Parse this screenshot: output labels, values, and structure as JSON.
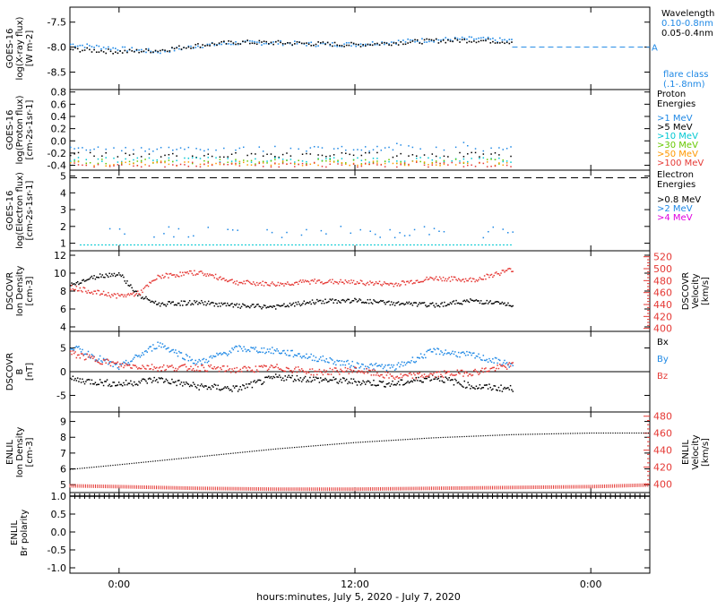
{
  "colors": {
    "black": "#000000",
    "blue": "#1e88e5",
    "red": "#e53935",
    "cyan": "#00c8d2",
    "green": "#66c800",
    "orange": "#ff9800",
    "magenta": "#e000e0"
  },
  "xaxis": {
    "ticks": [
      "0:00",
      "12:00",
      "0:00"
    ],
    "tick_hours": [
      0,
      12,
      24
    ],
    "range_hours": [
      -2.5,
      27
    ],
    "label": "hours:minutes, July  5, 2020 - July  7, 2020"
  },
  "chart_data": [
    {
      "type": "scatter",
      "id": "goes-xray",
      "ylabel_lines": [
        "GOES-16",
        "log(X-ray flux)",
        "[W m-2]"
      ],
      "yticks": [
        "-7.5",
        "-8.0",
        "-8.5"
      ],
      "ytick_values": [
        -7.5,
        -8.0,
        -8.5
      ],
      "ylim": [
        -8.85,
        -7.2
      ],
      "legend_title": "Wavelength",
      "legend": [
        {
          "label": "0.10-0.8nm",
          "color": "#1e88e5"
        },
        {
          "label": "0.05-0.4nm",
          "color": "#000000"
        }
      ],
      "flare_marker": "A",
      "flare_level": -8.0,
      "flare_class_label": [
        "flare class",
        "(.1-.8nm)"
      ],
      "series": [
        {
          "name": "0.10-0.8nm",
          "x": [
            -2.5,
            0,
            2,
            4,
            6,
            8,
            10,
            12,
            14,
            16,
            18,
            20
          ],
          "y": [
            -7.93,
            -8.02,
            -8.08,
            -7.96,
            -7.9,
            -7.9,
            -7.93,
            -7.93,
            -7.88,
            -7.84,
            -7.82,
            -7.86
          ]
        },
        {
          "name": "0.05-0.4nm",
          "x": [
            -2.5,
            0,
            2,
            4,
            6,
            8,
            10,
            12,
            14,
            16,
            18,
            20
          ],
          "y": [
            -8.03,
            -8.08,
            -8.05,
            -7.95,
            -7.89,
            -7.9,
            -7.92,
            -7.94,
            -7.9,
            -7.86,
            -7.85,
            -7.88
          ]
        }
      ]
    },
    {
      "type": "scatter",
      "id": "goes-proton",
      "ylabel_lines": [
        "GOES-16",
        "log(Proton flux)",
        "[cm-2s-1sr-1]"
      ],
      "yticks": [
        "0.8",
        "0.6",
        "0.4",
        "0.2",
        "0.0",
        "-0.2",
        "-0.4"
      ],
      "ytick_values": [
        0.8,
        0.6,
        0.4,
        0.2,
        0.0,
        -0.2,
        -0.4
      ],
      "ylim": [
        -0.48,
        0.84
      ],
      "legend_title": "Proton Energies",
      "legend": [
        {
          "label": ">1 MeV",
          "color": "#1e88e5"
        },
        {
          "label": ">5 MeV",
          "color": "#000000"
        },
        {
          "label": ">10 MeV",
          "color": "#00c8d2"
        },
        {
          "label": ">30 MeV",
          "color": "#66c800"
        },
        {
          "label": ">50 MeV",
          "color": "#ff9800"
        },
        {
          "label": ">100 MeV",
          "color": "#e53935"
        }
      ],
      "series": [
        {
          "name": ">1 MeV",
          "level": -0.12
        },
        {
          "name": ">5 MeV",
          "level": -0.22
        },
        {
          "name": ">10 MeV",
          "level": -0.3
        },
        {
          "name": ">30 MeV",
          "level": -0.33
        },
        {
          "name": ">50 MeV",
          "level": -0.36
        },
        {
          "name": ">100 MeV",
          "level": -0.38
        }
      ]
    },
    {
      "type": "scatter",
      "id": "goes-electron",
      "ylabel_lines": [
        "GOES-16",
        "log(Electron flux)",
        "[cm-2s-1sr-1]"
      ],
      "yticks": [
        "5",
        "4",
        "3",
        "2",
        "1"
      ],
      "ytick_values": [
        5,
        4,
        3,
        2,
        1
      ],
      "ylim": [
        0.55,
        5.35
      ],
      "threshold": 4.9,
      "legend_title": "Electron Energies",
      "legend": [
        {
          "label": ">0.8 MeV",
          "color": "#000000"
        },
        {
          "label": ">2 MeV",
          "color": "#1e88e5"
        },
        {
          "label": ">4 MeV",
          "color": "#e000e0"
        }
      ],
      "series": [
        {
          "name": ">2 MeV",
          "level": 1.7
        },
        {
          "name": "baseline",
          "level": 0.9
        }
      ]
    },
    {
      "type": "line",
      "id": "dscovr-plasma",
      "ylabel_lines": [
        "DSCOVR",
        "Ion Density",
        "[cm-3]"
      ],
      "yticks": [
        "12",
        "10",
        "8",
        "6",
        "4"
      ],
      "ytick_values": [
        12,
        10,
        8,
        6,
        4
      ],
      "ylim": [
        3.5,
        12.5
      ],
      "y2label_lines": [
        "DSCOVR",
        "Velocity",
        "[km/s]"
      ],
      "y2ticks": [
        "520",
        "500",
        "480",
        "460",
        "440",
        "420",
        "400"
      ],
      "y2tick_values": [
        520,
        500,
        480,
        460,
        440,
        420,
        400
      ],
      "y2lim": [
        395,
        530
      ],
      "series": [
        {
          "name": "Ion Density",
          "x": [
            -2.5,
            -1,
            0,
            1,
            2,
            4,
            6,
            8,
            10,
            12,
            14,
            16,
            18,
            20
          ],
          "y": [
            8.8,
            9.8,
            10.0,
            7.5,
            6.6,
            6.8,
            6.4,
            6.3,
            6.9,
            7.0,
            6.7,
            6.5,
            7.0,
            6.5
          ]
        },
        {
          "name": "Velocity",
          "axis": "right",
          "x": [
            -2.5,
            -1,
            0,
            1,
            2,
            4,
            6,
            8,
            10,
            12,
            14,
            16,
            18,
            20
          ],
          "y": [
            470,
            460,
            455,
            460,
            488,
            495,
            478,
            475,
            480,
            478,
            475,
            485,
            482,
            500
          ]
        }
      ]
    },
    {
      "type": "line",
      "id": "dscovr-mag",
      "ylabel_lines": [
        "DSCOVR",
        "B",
        "[nT]"
      ],
      "yticks": [
        "5",
        "0",
        "-5"
      ],
      "ytick_values": [
        5,
        0,
        -5
      ],
      "ylim": [
        -8.5,
        8.5
      ],
      "legend": [
        {
          "label": "Bx",
          "color": "#000000"
        },
        {
          "label": "By",
          "color": "#1e88e5"
        },
        {
          "label": "Bz",
          "color": "#e53935"
        }
      ],
      "series": [
        {
          "name": "Bx",
          "x": [
            -2.5,
            0,
            2,
            4,
            6,
            8,
            10,
            12,
            14,
            16,
            18,
            20
          ],
          "y": [
            -1.5,
            -2.5,
            -1.5,
            -3.0,
            -3.5,
            -1.0,
            -1.5,
            -2.0,
            -2.5,
            -1.0,
            -3.0,
            -3.5
          ]
        },
        {
          "name": "By",
          "x": [
            -2.5,
            0,
            2,
            4,
            6,
            8,
            10,
            12,
            14,
            16,
            18,
            20
          ],
          "y": [
            5.5,
            1.0,
            6.0,
            2.0,
            5.0,
            4.5,
            3.0,
            1.5,
            1.0,
            4.5,
            3.5,
            1.5
          ]
        },
        {
          "name": "Bz",
          "x": [
            -2.5,
            0,
            2,
            4,
            6,
            8,
            10,
            12,
            14,
            16,
            18,
            20
          ],
          "y": [
            4.0,
            1.5,
            1.0,
            1.0,
            0.5,
            1.0,
            0.0,
            0.5,
            -1.0,
            -0.5,
            0.0,
            1.5
          ]
        }
      ]
    },
    {
      "type": "line",
      "id": "enlil-plasma",
      "ylabel_lines": [
        "ENLIL",
        "Ion Density",
        "[cm-3]"
      ],
      "yticks": [
        "9",
        "8",
        "7",
        "6",
        "5"
      ],
      "ytick_values": [
        9,
        8,
        7,
        6,
        5
      ],
      "ylim": [
        4.5,
        9.6
      ],
      "y2label_lines": [
        "ENLIL",
        "Velocity",
        "[km/s]"
      ],
      "y2ticks": [
        "480",
        "460",
        "440",
        "420",
        "400"
      ],
      "y2tick_values": [
        480,
        460,
        440,
        420,
        400
      ],
      "y2lim": [
        390,
        485
      ],
      "series": [
        {
          "name": "Ion Density",
          "x": [
            -2.5,
            0,
            4,
            8,
            12,
            16,
            20,
            24,
            27
          ],
          "y": [
            6.0,
            6.3,
            6.8,
            7.3,
            7.7,
            8.0,
            8.2,
            8.3,
            8.3
          ]
        },
        {
          "name": "Velocity",
          "axis": "right",
          "x": [
            -2.5,
            0,
            4,
            8,
            12,
            16,
            20,
            24,
            27
          ],
          "y": [
            398,
            397,
            395,
            394,
            394,
            395,
            396,
            397,
            399
          ]
        }
      ]
    },
    {
      "type": "line",
      "id": "enlil-polarity",
      "ylabel_lines": [
        "ENLIL",
        "Br polarity"
      ],
      "yticks": [
        "1.0",
        "0.5",
        "0.0",
        "-0.5",
        "-1.0"
      ],
      "ytick_values": [
        1.0,
        0.5,
        0.0,
        -0.5,
        -1.0
      ],
      "ylim": [
        -1.15,
        1.1
      ],
      "series": [
        {
          "name": "Br polarity",
          "x": [
            -2.5,
            27
          ],
          "y": [
            1.0,
            1.0
          ]
        }
      ]
    }
  ]
}
